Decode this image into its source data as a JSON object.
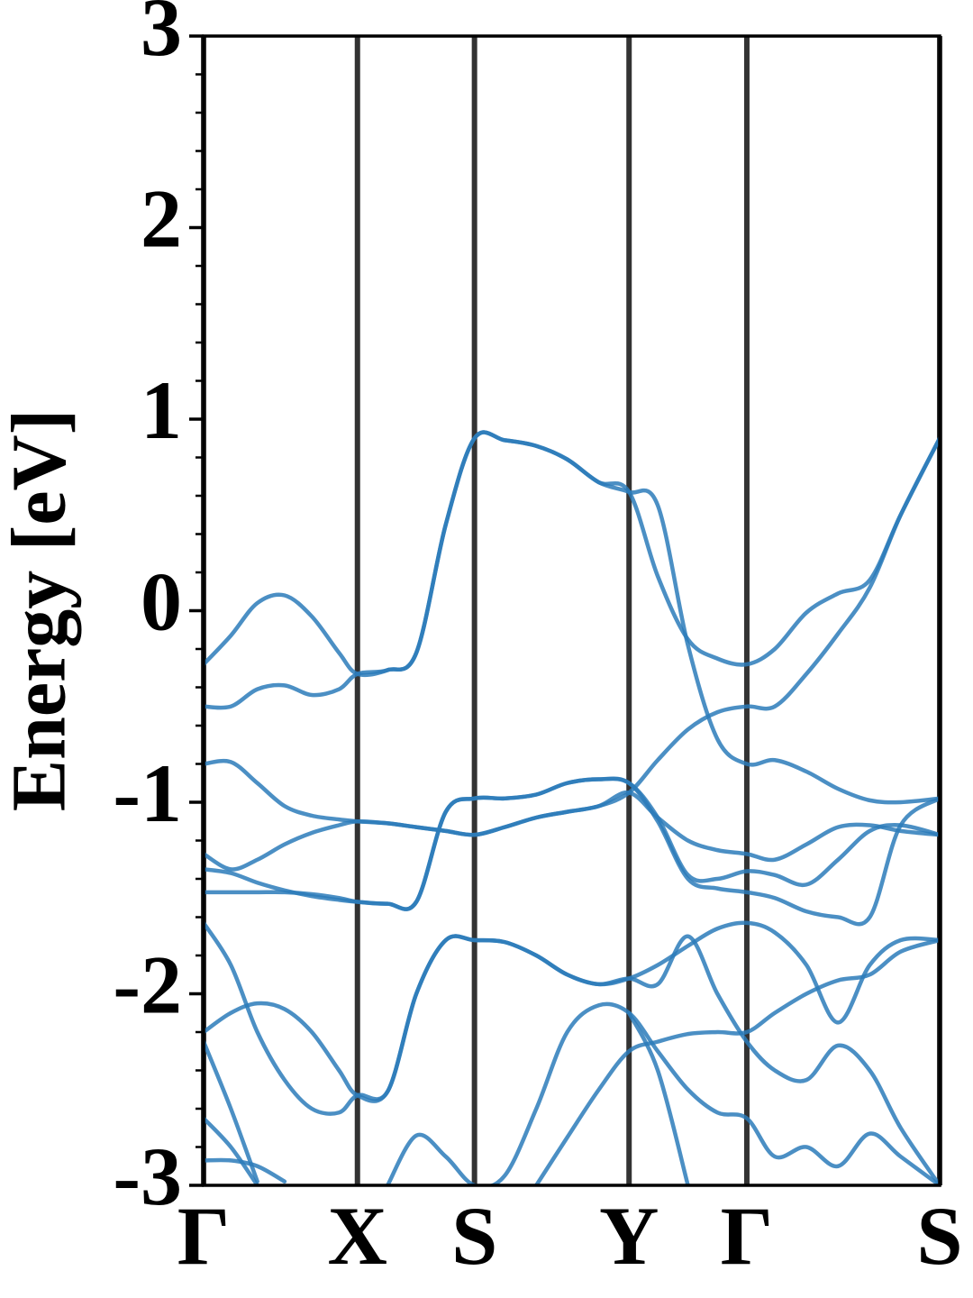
{
  "chart_data": {
    "type": "line",
    "ylabel": "Energy [eV]",
    "x": [
      0,
      0.037,
      0.073,
      0.11,
      0.147,
      0.184,
      0.209,
      0.25,
      0.289,
      0.329,
      0.368,
      0.409,
      0.452,
      0.494,
      0.537,
      0.578,
      0.617,
      0.658,
      0.698,
      0.738,
      0.776,
      0.819,
      0.862,
      0.905,
      0.947,
      1.0
    ],
    "xlim": [
      0,
      1
    ],
    "xticks": [
      {
        "value": 0,
        "label": "Γ"
      },
      {
        "value": 0.209,
        "label": "X"
      },
      {
        "value": 0.368,
        "label": "S"
      },
      {
        "value": 0.578,
        "label": "Y"
      },
      {
        "value": 0.738,
        "label": "Γ"
      },
      {
        "value": 1,
        "label": "S"
      }
    ],
    "ylim": [
      -3,
      3
    ],
    "yticks": [
      -3,
      -2,
      -1,
      0,
      1,
      2,
      3
    ],
    "yminorticks": [
      -2.8,
      -2.6,
      -2.4,
      -2.2,
      -1.8,
      -1.6,
      -1.4,
      -1.2,
      -0.8,
      -0.6,
      -0.4,
      -0.2,
      0.2,
      0.4,
      0.6,
      0.8,
      1.2,
      1.4,
      1.6,
      1.8,
      2.2,
      2.4,
      2.6,
      2.8
    ],
    "vlines": true,
    "series": [
      {
        "color": "#2b7bba",
        "values": [
          -0.28,
          -0.13,
          0.04,
          0.08,
          -0.03,
          -0.22,
          -0.33,
          -0.31,
          -0.22,
          0.45,
          0.9,
          0.89,
          0.86,
          0.79,
          0.67,
          0.62,
          0.18,
          -0.15,
          -0.25,
          -0.28,
          -0.2,
          -0.01,
          0.09,
          0.16,
          0.5,
          0.9
        ]
      },
      {
        "color": "#2b7bba",
        "values": [
          -0.5,
          -0.5,
          -0.41,
          -0.39,
          -0.44,
          -0.41,
          -0.33,
          -0.31,
          -0.22,
          0.45,
          0.9,
          0.89,
          0.86,
          0.79,
          0.67,
          0.62,
          0.55,
          -0.18,
          -0.67,
          -0.8,
          -0.78,
          -0.84,
          -0.93,
          -0.99,
          -1.0,
          -0.98
        ]
      },
      {
        "color": "#2b7bba",
        "values": [
          -0.8,
          -0.79,
          -0.9,
          -1.02,
          -1.07,
          -1.09,
          -1.1,
          -1.11,
          -1.13,
          -1.15,
          -1.17,
          -1.13,
          -1.08,
          -1.05,
          -1.02,
          -0.95,
          -0.78,
          -0.62,
          -0.53,
          -0.5,
          -0.5,
          -0.33,
          -0.12,
          0.12,
          0.5,
          0.9
        ]
      },
      {
        "color": "#2b7bba",
        "values": [
          -1.27,
          -1.35,
          -1.3,
          -1.22,
          -1.16,
          -1.12,
          -1.1,
          -1.11,
          -1.13,
          -1.15,
          -1.17,
          -1.13,
          -1.08,
          -1.05,
          -1.02,
          -0.95,
          -1.08,
          -1.2,
          -1.25,
          -1.27,
          -1.3,
          -1.22,
          -1.13,
          -1.12,
          -1.15,
          -1.17
        ]
      },
      {
        "color": "#2b7bba",
        "values": [
          -1.35,
          -1.37,
          -1.42,
          -1.46,
          -1.49,
          -1.51,
          -1.52,
          -1.53,
          -1.52,
          -1.05,
          -0.98,
          -0.98,
          -0.96,
          -0.9,
          -0.88,
          -0.9,
          -1.1,
          -1.4,
          -1.45,
          -1.47,
          -1.5,
          -1.57,
          -1.6,
          -1.6,
          -1.12,
          -0.98
        ]
      },
      {
        "color": "#2b7bba",
        "values": [
          -1.47,
          -1.47,
          -1.47,
          -1.47,
          -1.48,
          -1.5,
          -1.52,
          -1.53,
          -1.52,
          -1.05,
          -0.98,
          -0.98,
          -0.96,
          -0.9,
          -0.88,
          -0.9,
          -1.08,
          -1.38,
          -1.4,
          -1.36,
          -1.38,
          -1.43,
          -1.3,
          -1.15,
          -1.12,
          -1.17
        ]
      },
      {
        "color": "#2b7bba",
        "values": [
          -1.63,
          -1.85,
          -2.2,
          -2.45,
          -2.6,
          -2.62,
          -2.53,
          -2.51,
          -2.0,
          -1.72,
          -1.72,
          -1.73,
          -1.8,
          -1.9,
          -1.95,
          -1.92,
          -1.85,
          -1.75,
          -1.66,
          -1.63,
          -1.68,
          -1.85,
          -2.15,
          -1.85,
          -1.72,
          -1.72
        ]
      },
      {
        "color": "#2b7bba",
        "values": [
          -2.2,
          -2.1,
          -2.05,
          -2.08,
          -2.2,
          -2.4,
          -2.53,
          -2.51,
          -2.0,
          -1.72,
          -1.72,
          -1.73,
          -1.8,
          -1.9,
          -1.95,
          -1.92,
          -1.95,
          -1.7,
          -2.0,
          -2.25,
          -2.4,
          -2.45,
          -2.27,
          -2.4,
          -2.7,
          -3.0
        ]
      },
      {
        "color": "#2b7bba",
        "values": [
          -2.25,
          -2.6,
          -2.98,
          null,
          null,
          null,
          null,
          -3.0,
          -2.74,
          -2.85,
          -3.0,
          -2.95,
          -2.6,
          -2.2,
          -2.06,
          -2.1,
          -2.3,
          -2.5,
          -2.62,
          -2.65,
          -2.85,
          -2.8,
          -2.9,
          -2.73,
          -2.85,
          -3.0
        ]
      },
      {
        "color": "#2b7bba",
        "values": [
          -2.65,
          -2.8,
          -3.0,
          null,
          null,
          null,
          null,
          null,
          null,
          null,
          null,
          null,
          -3.0,
          -2.75,
          -2.5,
          -2.3,
          -2.25,
          -2.21,
          -2.2,
          -2.2,
          -2.1,
          -2.0,
          -1.93,
          -1.9,
          -1.78,
          -1.72
        ]
      },
      {
        "color": "#2b7bba",
        "values": [
          -2.87,
          -2.87,
          -2.9,
          -2.98,
          null,
          null,
          null,
          null,
          null,
          null,
          null,
          null,
          null,
          null,
          null,
          -2.1,
          -2.4,
          -3.0,
          null,
          null,
          null,
          null,
          null,
          null,
          null,
          null
        ]
      }
    ]
  }
}
